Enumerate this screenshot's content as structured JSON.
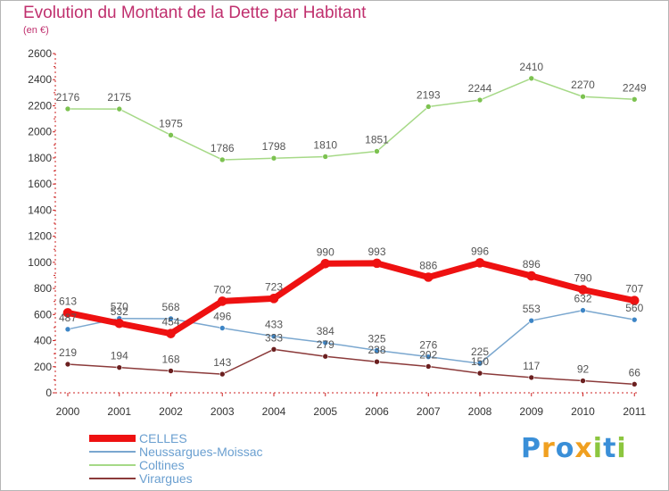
{
  "chart_data": {
    "type": "line",
    "title": "Evolution du Montant de la Dette par Habitant",
    "subtitle": "(en €)",
    "categories": [
      "2000",
      "2001",
      "2002",
      "2003",
      "2004",
      "2005",
      "2006",
      "2007",
      "2008",
      "2009",
      "2010",
      "2011"
    ],
    "ylim": [
      0,
      2600
    ],
    "yticks": [
      0,
      200,
      400,
      600,
      800,
      1000,
      1200,
      1400,
      1600,
      1800,
      2000,
      2200,
      2400,
      2600
    ],
    "grid": false,
    "legend_position": "bottom-left",
    "series": [
      {
        "name": "CELLES",
        "color": "#ee1111",
        "marker": "#ee1111",
        "width": 7,
        "values": [
          613,
          532,
          454,
          702,
          723,
          990,
          993,
          886,
          996,
          896,
          790,
          707
        ]
      },
      {
        "name": "Neussargues-Moissac",
        "color": "#7aa7cf",
        "marker": "#3d85c6",
        "width": 1.5,
        "values": [
          487,
          570,
          568,
          496,
          433,
          384,
          325,
          276,
          225,
          553,
          632,
          560
        ]
      },
      {
        "name": "Coltines",
        "color": "#a6d987",
        "marker": "#7cc250",
        "width": 1.5,
        "values": [
          2176,
          2175,
          1975,
          1786,
          1798,
          1810,
          1851,
          2193,
          2244,
          2410,
          2270,
          2249
        ]
      },
      {
        "name": "Virargues",
        "color": "#8b3a3a",
        "marker": "#6b1f1f",
        "width": 1.5,
        "values": [
          219,
          194,
          168,
          143,
          333,
          279,
          238,
          202,
          150,
          117,
          92,
          66
        ]
      }
    ]
  },
  "branding": {
    "logo_letters": [
      {
        "ch": "P",
        "color": "#3a8fd8"
      },
      {
        "ch": "r",
        "color": "#f0a020"
      },
      {
        "ch": "o",
        "color": "#3a8fd8"
      },
      {
        "ch": "x",
        "color": "#f0a020"
      },
      {
        "ch": "i",
        "color": "#8cc63f"
      },
      {
        "ch": "t",
        "color": "#3a8fd8"
      },
      {
        "ch": "i",
        "color": "#8cc63f"
      }
    ]
  }
}
